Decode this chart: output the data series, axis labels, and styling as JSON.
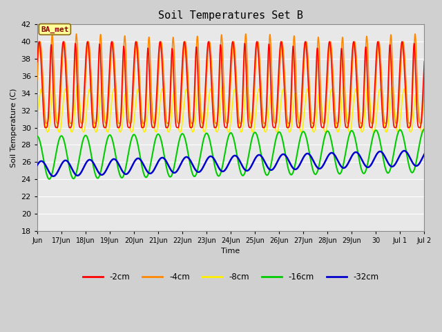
{
  "title": "Soil Temperatures Set B",
  "xlabel": "Time",
  "ylabel": "Soil Temperature (C)",
  "ylim": [
    18,
    42
  ],
  "fig_bg_color": "#d0d0d0",
  "plot_bg_color": "#e8e8e8",
  "annotation_text": "BA_met",
  "annotation_bg": "#ffff99",
  "annotation_border": "#8b6914",
  "annotation_text_color": "#8b0000",
  "series": {
    "-2cm": {
      "color": "#ff0000",
      "lw": 1.2
    },
    "-4cm": {
      "color": "#ff8800",
      "lw": 1.2
    },
    "-8cm": {
      "color": "#ffee00",
      "lw": 1.2
    },
    "-16cm": {
      "color": "#00cc00",
      "lw": 1.5
    },
    "-32cm": {
      "color": "#0000cc",
      "lw": 1.8
    }
  },
  "tick_labels": [
    "Jun",
    "17Jun",
    "18Jun",
    "19Jun",
    "20Jun",
    "21Jun",
    "22Jun",
    "23Jun",
    "24Jun",
    "25Jun",
    "26Jun",
    "27Jun",
    "28Jun",
    "29Jun",
    "30",
    "Jul 1",
    "Jul 2"
  ],
  "tick_positions": [
    16,
    17,
    18,
    19,
    20,
    21,
    22,
    23,
    24,
    25,
    26,
    27,
    28,
    29,
    30,
    31,
    32
  ],
  "xlim": [
    16,
    32
  ]
}
